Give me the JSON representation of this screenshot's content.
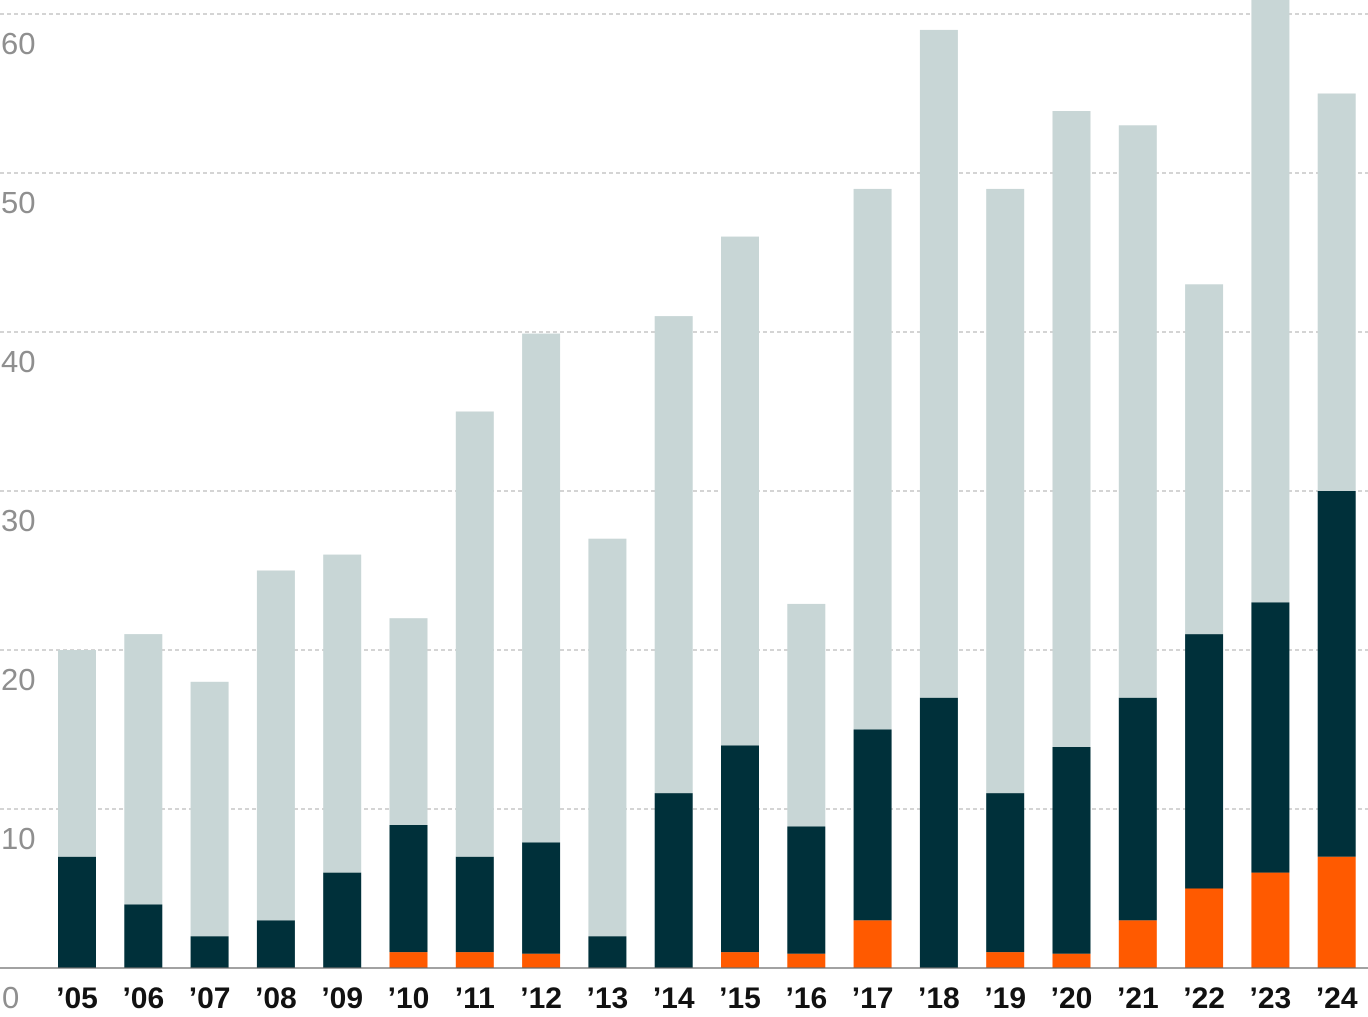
{
  "chart_data": {
    "type": "bar",
    "stacked": true,
    "categories": [
      "’05",
      "’06",
      "’07",
      "’08",
      "’09",
      "’10",
      "’11",
      "’12",
      "’13",
      "’14",
      "’15",
      "’16",
      "’17",
      "’18",
      "’19",
      "’20",
      "’21",
      "’22",
      "’23",
      "’24"
    ],
    "series": [
      {
        "color": "#ff5a00",
        "values": [
          0,
          0,
          0,
          0,
          0,
          1,
          1,
          0.9,
          0,
          0,
          1,
          0.9,
          3,
          0,
          1,
          0.9,
          3,
          5,
          6,
          7
        ]
      },
      {
        "color": "#00303a",
        "values": [
          7,
          4,
          2,
          3,
          6,
          8,
          6,
          7,
          2,
          11,
          13,
          8,
          12,
          17,
          10,
          13,
          14,
          16,
          17,
          23
        ]
      },
      {
        "color": "#c8d6d6",
        "values": [
          13,
          17,
          16,
          22,
          20,
          13,
          28,
          32,
          25,
          30,
          32,
          14,
          34,
          42,
          38,
          40,
          36,
          22,
          40,
          25
        ]
      }
    ],
    "yticks": [
      "0",
      "10",
      "20",
      "30",
      "40",
      "50",
      "60"
    ],
    "ylim": [
      0,
      61
    ],
    "title": "",
    "xlabel": "",
    "ylabel": "",
    "grid": true,
    "legend": "none"
  }
}
